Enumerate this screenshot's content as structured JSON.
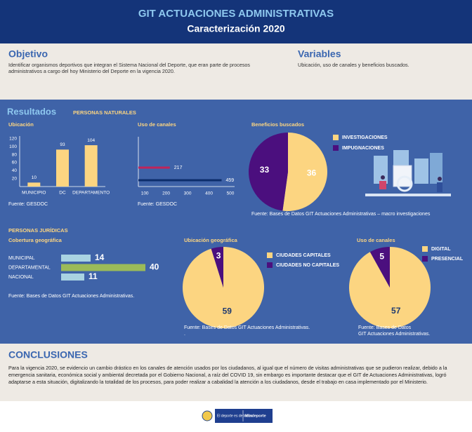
{
  "header": {
    "title": "GIT ACTUACIONES ADMINISTRATIVAS",
    "subtitle": "Caracterización 2020"
  },
  "objetivo": {
    "heading": "Objetivo",
    "text": "Identificar organismos deportivos que integran el Sistema Nacional del Deporte, que eran parte de procesos administrativos a cargo del hoy Ministerio del Deporte en la vigencia 2020."
  },
  "variables": {
    "heading": "Variables",
    "text": "Ubicación, uso de canales y beneficios buscados."
  },
  "resultados": {
    "heading": "Resultados",
    "naturales": "PERSONAS NATURALES",
    "juridicas": "PERSONAS JURÍDICAS"
  },
  "chart_data": [
    {
      "type": "bar",
      "title": "Ubicación",
      "categories": [
        "MUNICIPIO",
        "DC",
        "DEPARTAMENTO"
      ],
      "values": [
        10,
        93,
        104
      ],
      "color": "#fcd581",
      "ylim": [
        0,
        120
      ],
      "yticks": [
        20,
        40,
        60,
        80,
        100,
        120
      ],
      "source": "Fuente: GESDOC"
    },
    {
      "type": "bar",
      "horizontal": true,
      "title": "Uso de canales",
      "values": [
        217,
        459
      ],
      "colors": [
        "#c0245a",
        "#0c2d6b"
      ],
      "xlim": [
        70,
        500
      ],
      "xticks": [
        100,
        200,
        300,
        400,
        500
      ],
      "source": "Fuente: GESDOC"
    },
    {
      "type": "pie",
      "title": "Beneficios buscados",
      "categories": [
        "INVESTIGACIONES",
        "IMPUGNACIONES"
      ],
      "values": [
        36,
        33
      ],
      "colors": [
        "#fcd581",
        "#4b0f7e"
      ],
      "label_colors": [
        "#ffffff",
        "#ffffff"
      ],
      "source": "Fuente: Bases de Datos GIT Actuaciones Administrativas – macro investigaciones"
    },
    {
      "type": "bar",
      "horizontal": true,
      "title": "Cobertura geográfica",
      "categories": [
        "MUNICIPAL",
        "DEPARTAMENTAL",
        "NACIONAL"
      ],
      "values": [
        14,
        40,
        11
      ],
      "colors": [
        "#a9d3e2",
        "#9bbb59",
        "#a9d3e2"
      ],
      "source": "Fuente: Bases de Datos GIT Actuaciones Administrativas."
    },
    {
      "type": "pie",
      "title": "Ubicación geográfica",
      "categories": [
        "CIUDADES CAPITALES",
        "CIUDADES NO CAPITALES"
      ],
      "values": [
        59,
        3
      ],
      "colors": [
        "#fcd581",
        "#4b0f7e"
      ],
      "label_colors": [
        "#1f3a70",
        "#ffffff"
      ],
      "source": "Fuente: Bases de Datos GIT Actuaciones Administrativas.\n."
    },
    {
      "type": "pie",
      "title": "Uso de canales",
      "categories": [
        "DIGITAL",
        "PRESENCIAL"
      ],
      "values": [
        57,
        5
      ],
      "colors": [
        "#fcd581",
        "#4b0f7e"
      ],
      "label_colors": [
        "#1f3a70",
        "#ffffff"
      ],
      "source": "Fuente: Bases de Datos\nGIT Actuaciones Administrativas."
    }
  ],
  "conclusiones": {
    "heading": "CONCLUSIONES",
    "text": "Para la vigencia 2020, se evidencio un cambio drástico en los canales de atención usados por los ciudadanos, al igual que el número de visitas administrativas que se pudieron realizar, debido a la emergencia sanitaria, económica social y ambiental decretada por el Gobierno Nacional, a raíz del COVID 19, sin embargo es importante destacar que el GIT de Actuaciones Administrativas, logró adaptarse a esta situación, digitalizando la totalidad de los procesos, para poder realizar a cabalidad la atención a los ciudadanos, desde el trabajo en casa implementado por el Ministerio."
  },
  "footer": {
    "slogan": "El deporte es de todos",
    "brand": "Mindeporte"
  }
}
